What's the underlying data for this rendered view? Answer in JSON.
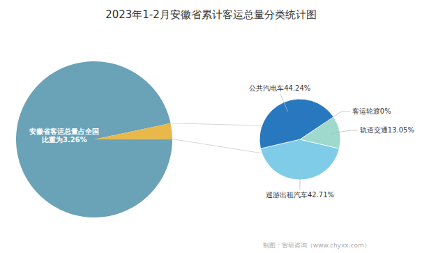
{
  "chart_data": [
    {
      "type": "pie",
      "title": "2023年1-2月安徽省累计客运总量分类统计图",
      "values": [
        96.74,
        3.26
      ],
      "colors": [
        "#6aa3b8",
        "#e8b84b"
      ],
      "annotation": "安徽省客运总量占全国\n比重为3.26%"
    },
    {
      "type": "pie",
      "categories": [
        "巡游出租汽车42.71%",
        "轨道交通13.05%",
        "客运轮渡0%",
        "公共汽电车44.24%"
      ],
      "values": [
        42.71,
        13.05,
        0.01,
        44.24
      ],
      "colors": [
        "#7ecce8",
        "#9fd8cc",
        "#5aafe0",
        "#2878c0"
      ],
      "footer": "制图：智研咨询（www.chyxx.com）"
    }
  ]
}
